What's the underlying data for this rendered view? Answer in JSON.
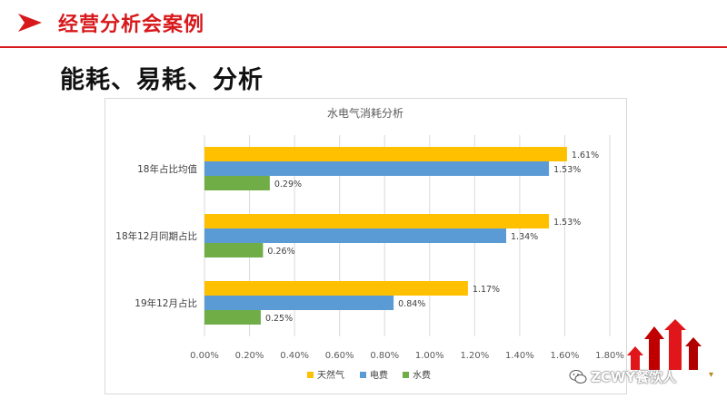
{
  "header": {
    "title": "经营分析会案例",
    "accent_color": "#d7191c"
  },
  "subtitle": "能耗、易耗、分析",
  "watermark": {
    "text": "ZCWY餐饮人",
    "icon": "wechat-icon"
  },
  "chart_data": {
    "type": "bar",
    "orientation": "horizontal",
    "title": "水电气消耗分析",
    "categories": [
      "18年占比均值",
      "18年12月同期占比",
      "19年12月占比"
    ],
    "series": [
      {
        "name": "天然气",
        "color": "#ffc000",
        "values": [
          1.61,
          1.53,
          1.17
        ],
        "labels": [
          "1.61%",
          "1.53%",
          "1.17%"
        ]
      },
      {
        "name": "电费",
        "color": "#5b9bd5",
        "values": [
          1.53,
          1.34,
          0.84
        ],
        "labels": [
          "1.53%",
          "1.34%",
          "0.84%"
        ]
      },
      {
        "name": "水费",
        "color": "#70ad47",
        "values": [
          0.29,
          0.26,
          0.25
        ],
        "labels": [
          "0.29%",
          "0.26%",
          "0.25%"
        ]
      }
    ],
    "x_ticks": [
      "0.00%",
      "0.20%",
      "0.40%",
      "0.60%",
      "0.80%",
      "1.00%",
      "1.20%",
      "1.40%",
      "1.60%",
      "1.80%"
    ],
    "xlim": [
      0,
      1.8
    ],
    "grid": true,
    "legend_position": "bottom"
  }
}
